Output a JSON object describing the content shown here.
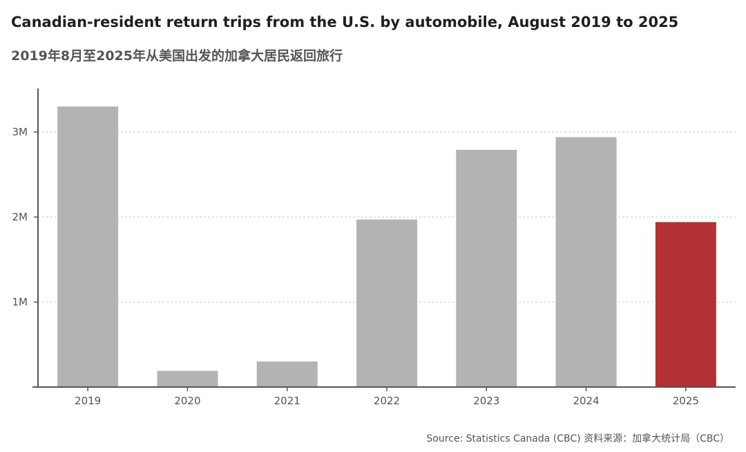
{
  "header": {
    "title": "Canadian-resident return trips from the U.S. by automobile, August 2019 to 2025",
    "subtitle": "2019年8月至2025年从美国出发的加拿大居民返回旅行"
  },
  "footer": {
    "source": "Source: Statistics Canada (CBC)  资料来源：加拿大统计局（CBC）"
  },
  "colors": {
    "bar": "#b3b3b3",
    "highlight": "#b33033"
  },
  "chart_data": {
    "type": "bar",
    "title": "Canadian-resident return trips from the U.S. by automobile, August 2019 to 2025",
    "xlabel": "",
    "ylabel": "",
    "categories": [
      "2019",
      "2020",
      "2021",
      "2022",
      "2023",
      "2024",
      "2025"
    ],
    "values": [
      3300000,
      190000,
      300000,
      1970000,
      2790000,
      2940000,
      1940000
    ],
    "highlight_index": 6,
    "ylim": [
      0,
      3500000
    ],
    "yticks": [
      {
        "value": 1000000,
        "label": "1M"
      },
      {
        "value": 2000000,
        "label": "2M"
      },
      {
        "value": 3000000,
        "label": "3M"
      }
    ],
    "grid": true
  }
}
